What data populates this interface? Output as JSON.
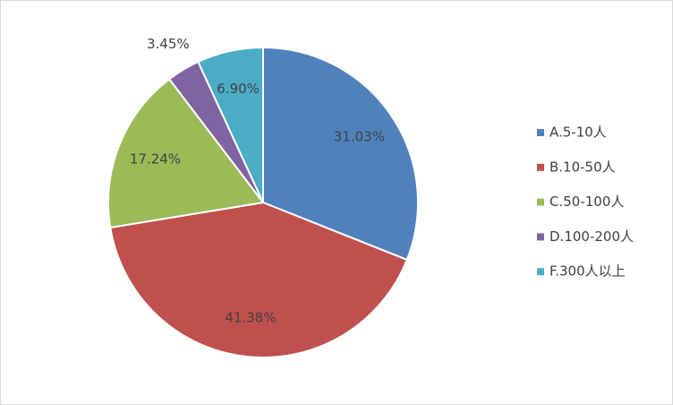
{
  "chart_data": {
    "type": "pie",
    "categories": [
      "A.5-10人",
      "B.10-50人",
      "C.50-100人",
      "D.100-200人",
      "F.300人以上"
    ],
    "values": [
      31.03,
      41.38,
      17.24,
      3.45,
      6.9
    ],
    "value_labels": [
      "31.03%",
      "41.38%",
      "17.24%",
      "3.45%",
      "6.90%"
    ],
    "colors": [
      "#4f81bd",
      "#c0504d",
      "#9bbb59",
      "#8064a2",
      "#4bacc6"
    ],
    "legend": "right"
  }
}
